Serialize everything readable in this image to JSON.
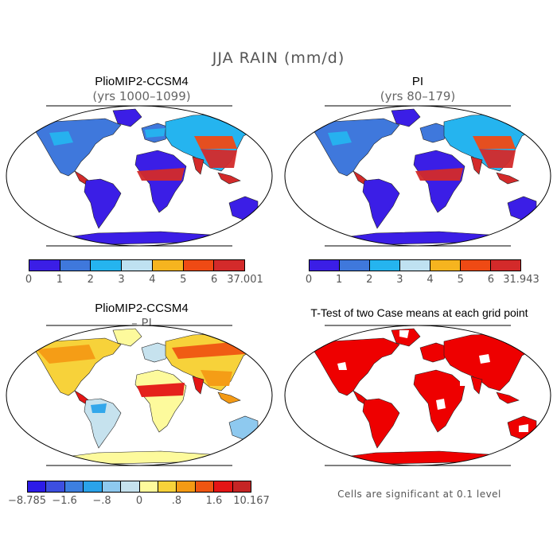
{
  "title": "JJA RAIN (mm/d)",
  "colors": {
    "ocean": "#ffffff",
    "outline": "#000000",
    "sig_red": "#ee0000"
  },
  "panels": [
    {
      "id": "pliomip2",
      "title": "PlioMIP2-CCSM4",
      "subtitle": "(yrs 1000–1099)",
      "map_type": "precipitation",
      "colorbar": {
        "colors": [
          "#3b1ee6",
          "#3f78dc",
          "#25b4ef",
          "#bfe1f1",
          "#f6b41f",
          "#ef4a14",
          "#d32a2a"
        ],
        "ticks": [
          "0",
          "1",
          "2",
          "3",
          "4",
          "5",
          "6",
          "37.001"
        ]
      }
    },
    {
      "id": "pi",
      "title": "PI",
      "subtitle": "(yrs 80–179)",
      "map_type": "precipitation",
      "colorbar": {
        "colors": [
          "#3b1ee6",
          "#3f78dc",
          "#25b4ef",
          "#bfe1f1",
          "#f6b41f",
          "#ef4a14",
          "#d32a2a"
        ],
        "ticks": [
          "0",
          "1",
          "2",
          "3",
          "4",
          "5",
          "6",
          "31.943"
        ]
      }
    },
    {
      "id": "diff",
      "title": "PlioMIP2-CCSM4",
      "subtitle": "– PI",
      "map_type": "difference",
      "colorbar": {
        "colors": [
          "#2c1be8",
          "#3d4fe0",
          "#3d7fe0",
          "#2aa3ea",
          "#8ec9ef",
          "#c6e2ee",
          "#fdfa9c",
          "#f7d23a",
          "#f49a14",
          "#ef5512",
          "#e41515",
          "#c52525"
        ],
        "ticks": [
          "−8.785",
          "−1.6",
          "−.8",
          "0",
          ".8",
          "1.6",
          "10.167"
        ]
      }
    },
    {
      "id": "ttest",
      "title": "T-Test of two Case means at each grid point",
      "map_type": "significance",
      "note": "Cells are significant at 0.1 level"
    }
  ]
}
